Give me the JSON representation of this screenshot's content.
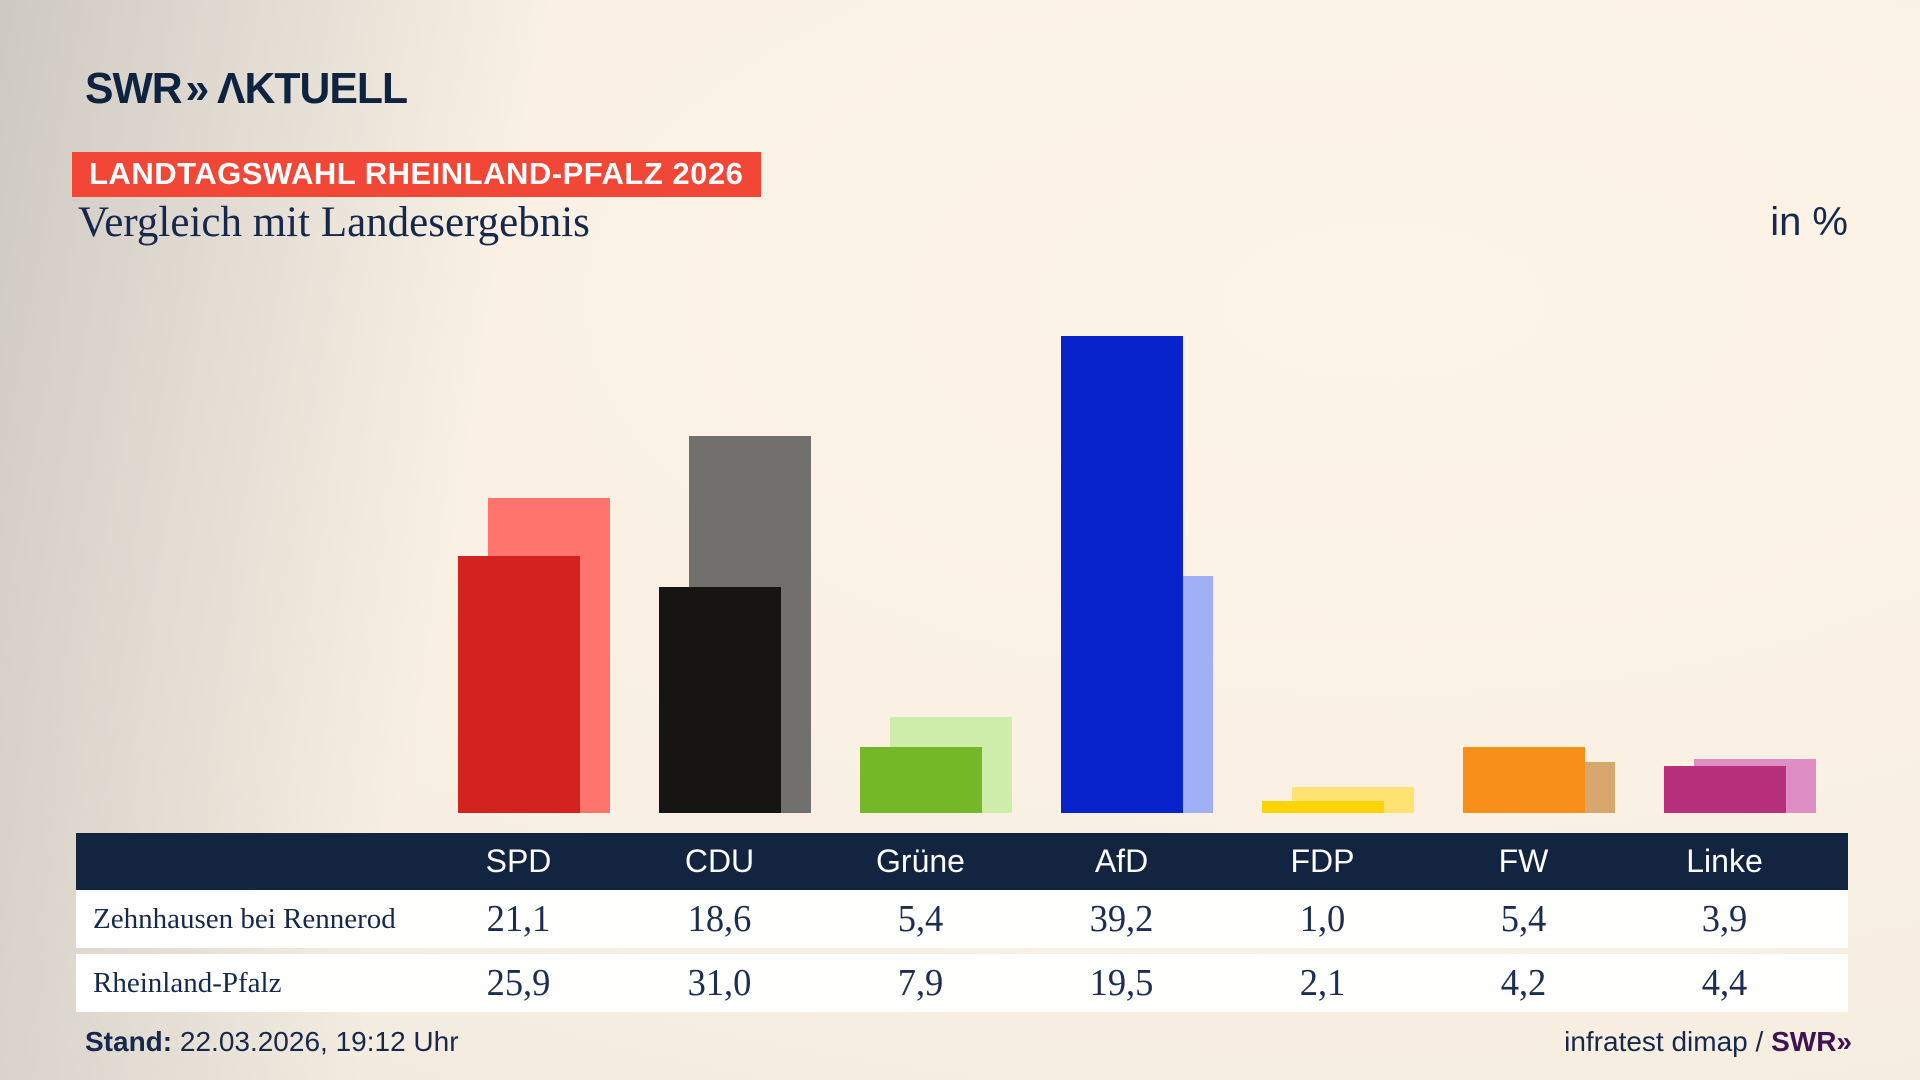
{
  "brand": {
    "logo_text": "SWR",
    "logo_chevrons": "»",
    "logo_suffix": "ΛKTUELL"
  },
  "banner": {
    "text": "LANDTAGSWAHL RHEINLAND-PFALZ 2026",
    "bg_color": "#f24636"
  },
  "title": "Vergleich mit Landesergebnis",
  "unit_label": "in %",
  "chart_data": {
    "type": "bar",
    "title": "Vergleich mit Landesergebnis",
    "unit": "in %",
    "categories": [
      "SPD",
      "CDU",
      "Grüne",
      "AfD",
      "FDP",
      "FW",
      "Linke"
    ],
    "series": [
      {
        "name": "Zehnhausen bei Rennerod",
        "values": [
          21.1,
          18.6,
          5.4,
          39.2,
          1.0,
          5.4,
          3.9
        ]
      },
      {
        "name": "Rheinland-Pfalz",
        "values": [
          25.9,
          31.0,
          7.9,
          19.5,
          2.1,
          4.2,
          4.4
        ]
      }
    ],
    "party_colors": [
      {
        "party": "SPD",
        "local": "#d22321",
        "state": "#ff746c"
      },
      {
        "party": "CDU",
        "local": "#171513",
        "state": "#72706d"
      },
      {
        "party": "Grüne",
        "local": "#74b727",
        "state": "#cfedaa"
      },
      {
        "party": "AfD",
        "local": "#0823cb",
        "state": "#9fb0f7"
      },
      {
        "party": "FDP",
        "local": "#ffd401",
        "state": "#ffe372"
      },
      {
        "party": "FW",
        "local": "#f88f1a",
        "state": "#d8a76e"
      },
      {
        "party": "Linke",
        "local": "#b7307c",
        "state": "#de8ec2"
      }
    ],
    "ylim": [
      0,
      46
    ],
    "grid": false,
    "legend": "none",
    "layout_note": "foreground dark bar = local result, background light bar offset right = state result"
  },
  "table": {
    "columns": [
      "SPD",
      "CDU",
      "Grüne",
      "AfD",
      "FDP",
      "FW",
      "Linke"
    ],
    "header_bg": "#132440",
    "rows": [
      {
        "label": "Zehnhausen bei Rennerod",
        "values": [
          "21,1",
          "18,6",
          "5,4",
          "39,2",
          "1,0",
          "5,4",
          "3,9"
        ]
      },
      {
        "label": "Rheinland-Pfalz",
        "values": [
          "25,9",
          "31,0",
          "7,9",
          "19,5",
          "2,1",
          "4,2",
          "4,4"
        ]
      }
    ]
  },
  "footer": {
    "stand_label": "Stand:",
    "stand_value": " 22.03.2026, 19:12 Uhr",
    "source_text": "infratest dimap / ",
    "source_brand": "SWR",
    "source_brand_chevrons": "»"
  }
}
